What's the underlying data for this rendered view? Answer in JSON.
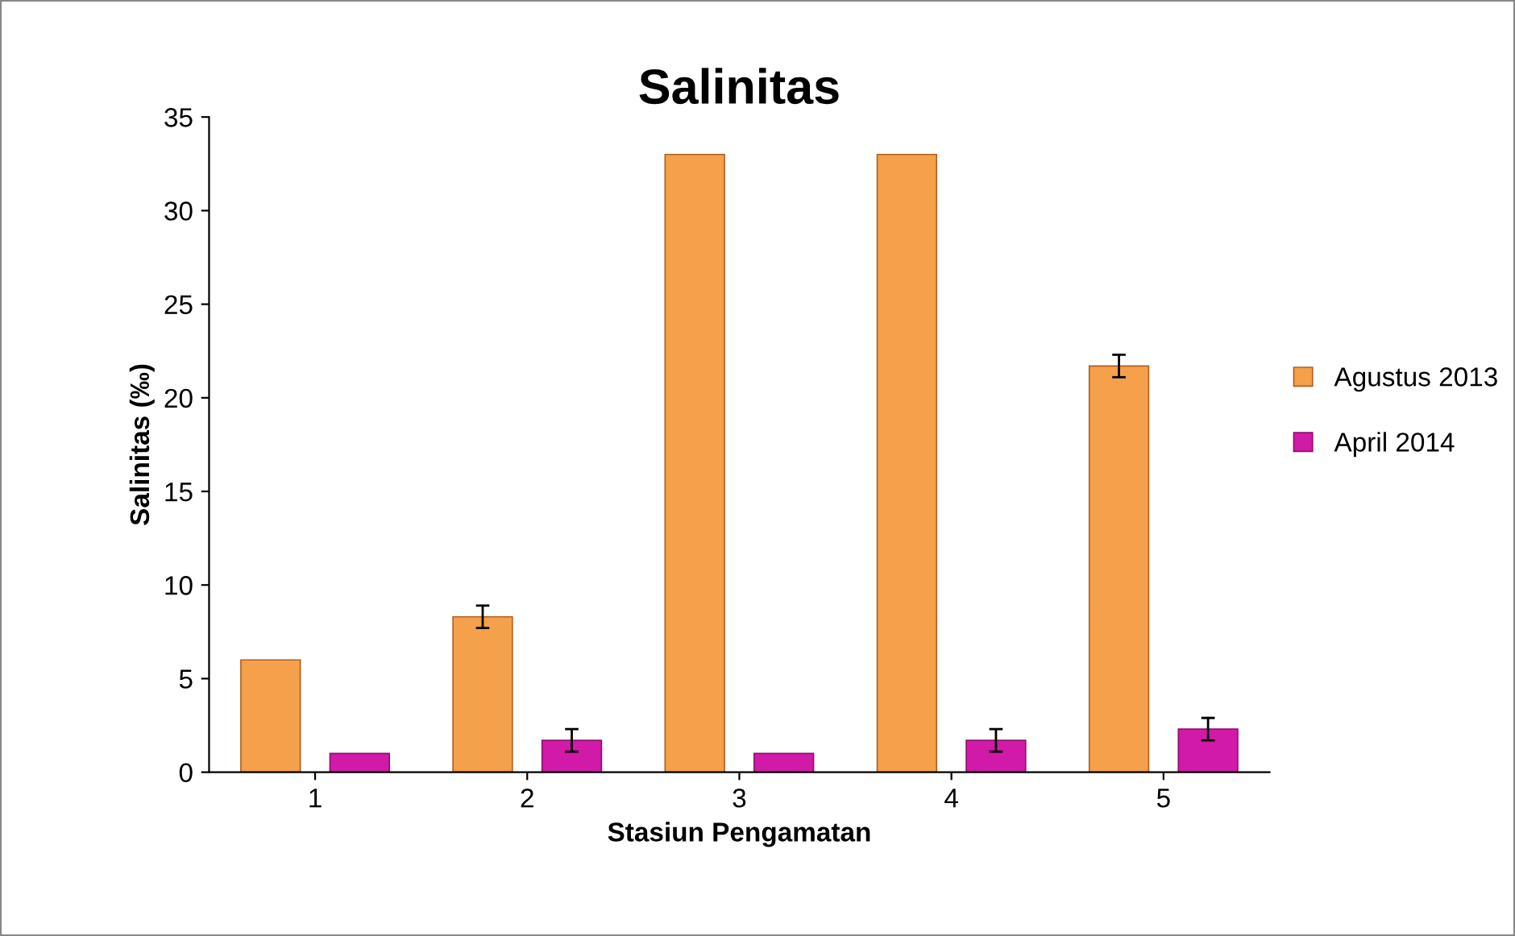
{
  "chart_data": {
    "type": "bar",
    "title": "Salinitas",
    "xlabel": "Stasiun Pengamatan",
    "ylabel": "Salinitas (‰)",
    "categories": [
      "1",
      "2",
      "3",
      "4",
      "5"
    ],
    "series": [
      {
        "name": "Agustus 2013",
        "color": "#f5a04a",
        "values": [
          6,
          8.3,
          33,
          33,
          21.7
        ],
        "errors": [
          null,
          0.6,
          null,
          null,
          0.6
        ]
      },
      {
        "name": "April 2014",
        "color": "#d21aa8",
        "values": [
          1,
          1.7,
          1,
          1.7,
          2.3
        ],
        "errors": [
          null,
          0.6,
          null,
          0.6,
          0.6
        ]
      }
    ],
    "ylim": [
      0,
      35
    ],
    "yticks": [
      0,
      5,
      10,
      15,
      20,
      25,
      30,
      35
    ],
    "grid": false,
    "legend": "right"
  }
}
